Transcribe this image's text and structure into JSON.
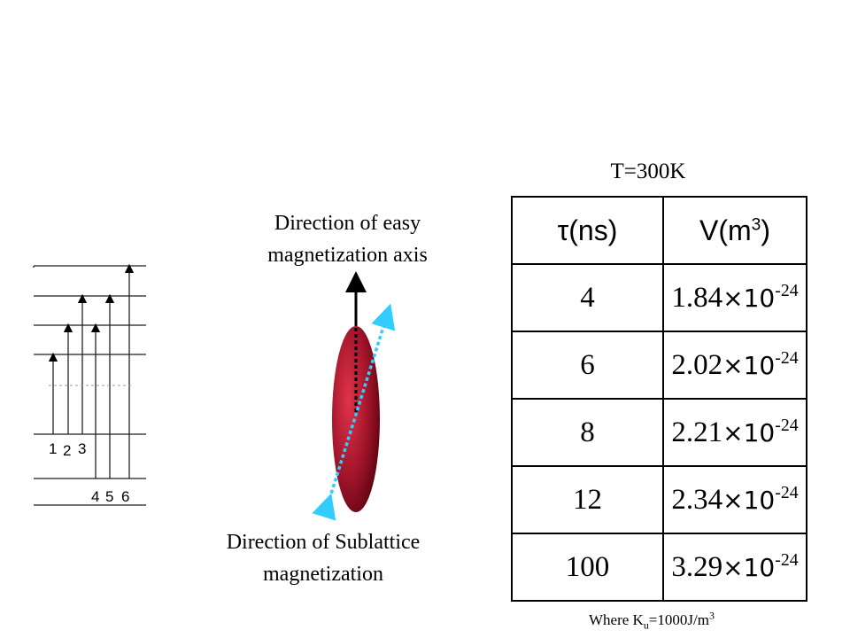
{
  "temperature_label": "T=300K",
  "easy_axis_label": {
    "line1": "Direction of easy",
    "line2": "magnetization  axis"
  },
  "sublattice_label": {
    "line1": "Direction of Sublattice",
    "line2": "magnetization"
  },
  "table": {
    "headers": {
      "tau_symbol": "τ(ns)",
      "volume_base": "V(m",
      "volume_exp": "3",
      "volume_close": ")"
    },
    "rows": [
      {
        "tau": "4",
        "mantissa": "1.84",
        "times": "×10",
        "exp": "-24"
      },
      {
        "tau": "6",
        "mantissa": "2.02",
        "times": "×10",
        "exp": "-24"
      },
      {
        "tau": "8",
        "mantissa": "2.21",
        "times": "×10",
        "exp": "-24"
      },
      {
        "tau": "12",
        "mantissa": "2.34",
        "times": "×10",
        "exp": "-24"
      },
      {
        "tau": "100",
        "mantissa": "3.29",
        "times": "×10",
        "exp": "-24"
      }
    ]
  },
  "footnote": {
    "prefix": "Where K",
    "sub": "u",
    "middle": "=1000J/m",
    "sup": "3"
  },
  "energy_level_diagram": {
    "transition_numbers": [
      "1",
      "2",
      "3",
      "4",
      "5",
      "6"
    ]
  },
  "colors": {
    "ellipse": "#8b0a1a",
    "sublattice_arrow": "#33ccff",
    "easy_axis_arrow": "#000000"
  }
}
